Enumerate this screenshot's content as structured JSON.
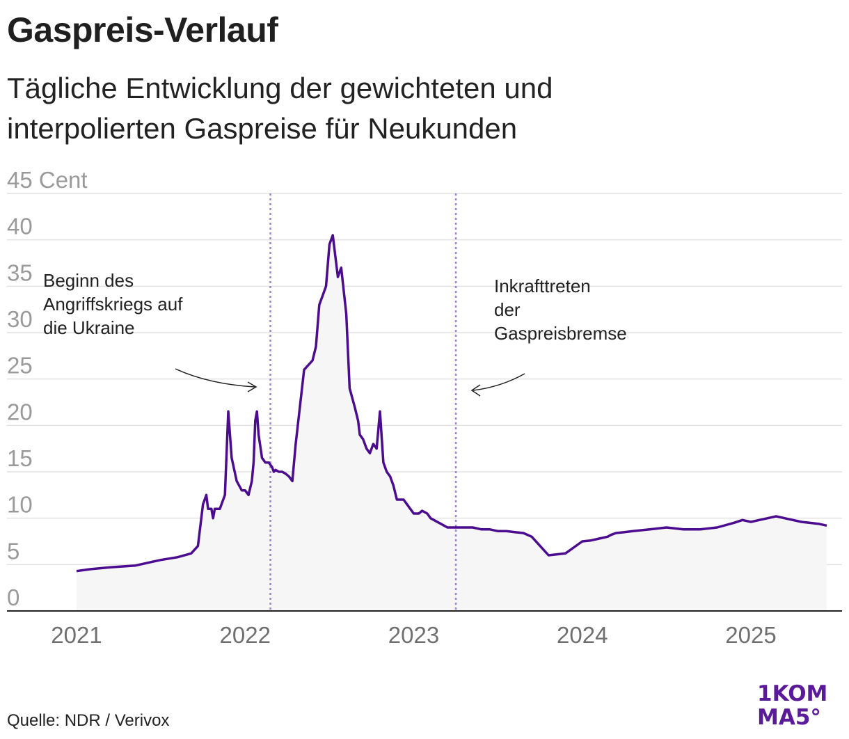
{
  "header": {
    "title": "Gaspreis-Verlauf",
    "subtitle_line1": "Tägliche Entwicklung der gewichteten und",
    "subtitle_line2": "interpolierten Gaspreise für Neukunden"
  },
  "footer": {
    "source": "Quelle: NDR / Verivox",
    "logo_line1": "1KOM",
    "logo_line2": "MA5°"
  },
  "colors": {
    "line": "#4b0c8f",
    "area": "#f6f6f6",
    "grid": "#e2e2e2",
    "event_line": "#a27fd6",
    "axis": "#222222",
    "logo": "#5a1a9a"
  },
  "chart_data": {
    "type": "area",
    "title": "Gaspreis-Verlauf",
    "subtitle": "Tägliche Entwicklung der gewichteten und interpolierten Gaspreise für Neukunden",
    "ylabel_unit": "Cent",
    "ylim": [
      0,
      45
    ],
    "yticks": [
      0,
      5,
      10,
      15,
      20,
      25,
      30,
      35,
      40,
      45
    ],
    "ytick_labels": [
      "0",
      "5",
      "10",
      "15",
      "20",
      "25",
      "30",
      "35",
      "40",
      "45 Cent"
    ],
    "xlim": [
      2021.0,
      2025.45
    ],
    "xticks": [
      2021,
      2022,
      2023,
      2024,
      2025
    ],
    "xtick_labels": [
      "2021",
      "2022",
      "2023",
      "2024",
      "2025"
    ],
    "grid": true,
    "legend": "none",
    "series": [
      {
        "x": [
          2021.0,
          2021.08,
          2021.2,
          2021.35,
          2021.45,
          2021.5,
          2021.6,
          2021.68,
          2021.72,
          2021.75,
          2021.77,
          2021.78,
          2021.8,
          2021.81,
          2021.82,
          2021.83,
          2021.85,
          2021.88,
          2021.9,
          2021.92,
          2021.95,
          2021.98,
          2022.0,
          2022.02,
          2022.04,
          2022.05,
          2022.06,
          2022.07,
          2022.08,
          2022.1,
          2022.12,
          2022.14,
          2022.16,
          2022.17,
          2022.18,
          2022.2,
          2022.22,
          2022.24,
          2022.26,
          2022.28,
          2022.3,
          2022.35,
          2022.4,
          2022.42,
          2022.44,
          2022.46,
          2022.48,
          2022.5,
          2022.52,
          2022.55,
          2022.57,
          2022.6,
          2022.62,
          2022.65,
          2022.67,
          2022.68,
          2022.7,
          2022.72,
          2022.74,
          2022.76,
          2022.78,
          2022.8,
          2022.82,
          2022.84,
          2022.86,
          2022.88,
          2022.9,
          2022.92,
          2022.94,
          2022.96,
          2022.98,
          2023.0,
          2023.03,
          2023.05,
          2023.08,
          2023.1,
          2023.15,
          2023.2,
          2023.25,
          2023.3,
          2023.35,
          2023.4,
          2023.45,
          2023.5,
          2023.55,
          2023.6,
          2023.65,
          2023.7,
          2023.75,
          2023.8,
          2023.9,
          2024.0,
          2024.05,
          2024.1,
          2024.15,
          2024.17,
          2024.2,
          2024.25,
          2024.3,
          2024.4,
          2024.5,
          2024.6,
          2024.7,
          2024.8,
          2024.9,
          2024.95,
          2025.0,
          2025.05,
          2025.1,
          2025.15,
          2025.2,
          2025.3,
          2025.4,
          2025.45
        ],
        "y": [
          4.3,
          4.5,
          4.7,
          4.9,
          5.3,
          5.5,
          5.8,
          6.2,
          7.0,
          11.5,
          12.5,
          11.0,
          11.0,
          10.0,
          11.0,
          11.0,
          11.0,
          12.5,
          21.5,
          16.5,
          14.0,
          13.0,
          13.0,
          12.5,
          14.0,
          16.0,
          20.5,
          21.5,
          19.0,
          16.5,
          16.0,
          16.0,
          15.5,
          15.0,
          15.2,
          15.0,
          15.0,
          14.8,
          14.5,
          14.0,
          18.0,
          26.0,
          27.0,
          28.5,
          33.0,
          34.0,
          35.0,
          39.5,
          40.5,
          36.0,
          37.0,
          32.0,
          24.0,
          22.0,
          20.5,
          19.0,
          18.5,
          17.5,
          17.0,
          18.0,
          17.5,
          21.5,
          16.0,
          15.0,
          14.5,
          13.5,
          12.0,
          12.0,
          12.0,
          11.5,
          11.0,
          10.5,
          10.5,
          10.8,
          10.5,
          10.0,
          9.5,
          9.0,
          9.0,
          9.0,
          9.0,
          8.8,
          8.8,
          8.6,
          8.6,
          8.5,
          8.4,
          8.0,
          7.0,
          6.0,
          6.2,
          7.5,
          7.6,
          7.8,
          8.0,
          8.2,
          8.4,
          8.5,
          8.6,
          8.8,
          9.0,
          8.8,
          8.8,
          9.0,
          9.5,
          9.8,
          9.6,
          9.8,
          10.0,
          10.2,
          10.0,
          9.6,
          9.4,
          9.2
        ]
      }
    ],
    "annotations": [
      {
        "x": 2022.15,
        "text_lines": [
          "Beginn des",
          "Angriffskriegs auf",
          "die Ukraine"
        ]
      },
      {
        "x": 2023.25,
        "text_lines": [
          "Inkrafttreten",
          "der",
          "Gaspreisbremse"
        ]
      }
    ]
  }
}
